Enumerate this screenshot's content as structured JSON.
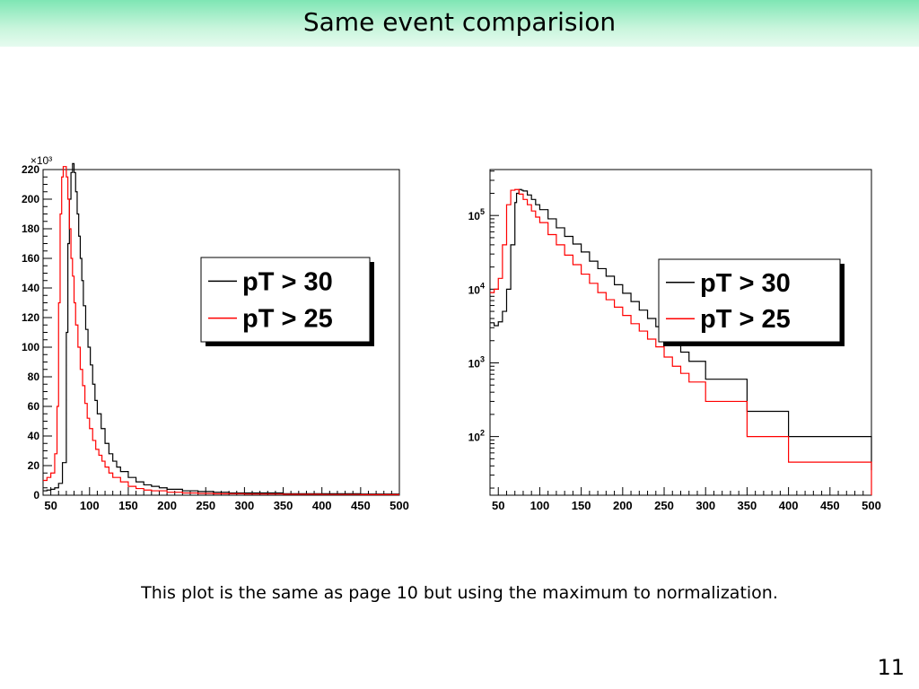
{
  "slide": {
    "title": "Same event comparision",
    "caption": "This plot is the same as page 10 but using the maximum to normalization.",
    "page_number": "11"
  },
  "chart_data": [
    {
      "type": "line",
      "title": "",
      "xlabel": "",
      "ylabel": "",
      "y_multiplier": "×10³",
      "xlim": [
        40,
        500
      ],
      "ylim": [
        0,
        220
      ],
      "yscale": "linear",
      "xticks": [
        50,
        100,
        150,
        200,
        250,
        300,
        350,
        400,
        450,
        500
      ],
      "yticks": [
        0,
        20,
        40,
        60,
        80,
        100,
        120,
        140,
        160,
        180,
        200,
        220
      ],
      "legend_position": "top-right",
      "grid": false,
      "series": [
        {
          "name": "pT > 30",
          "color": "#000000",
          "x": [
            40,
            45,
            50,
            55,
            60,
            65,
            70,
            72,
            74,
            76,
            78,
            80,
            82,
            84,
            86,
            88,
            90,
            92,
            95,
            98,
            101,
            104,
            107,
            110,
            115,
            120,
            125,
            130,
            135,
            140,
            150,
            160,
            170,
            180,
            190,
            200,
            220,
            240,
            260,
            280,
            300,
            350,
            400,
            450,
            500
          ],
          "y": [
            3,
            3.5,
            4,
            5,
            8,
            22,
            110,
            170,
            200,
            218,
            224,
            218,
            205,
            190,
            175,
            160,
            145,
            128,
            112,
            100,
            88,
            75,
            64,
            55,
            45,
            35,
            28,
            23,
            19,
            16,
            12,
            9,
            7,
            6,
            5,
            4,
            3,
            2.5,
            2,
            1.5,
            1.5,
            1,
            1,
            0.8,
            0.8
          ]
        },
        {
          "name": "pT > 25",
          "color": "#ff0000",
          "x": [
            40,
            45,
            50,
            55,
            58,
            60,
            62,
            64,
            66,
            68,
            70,
            72,
            74,
            76,
            78,
            80,
            82,
            85,
            88,
            91,
            94,
            97,
            100,
            104,
            108,
            112,
            116,
            120,
            125,
            130,
            140,
            150,
            160,
            170,
            180,
            200,
            220,
            240,
            260,
            280,
            300,
            350,
            400,
            450,
            500
          ],
          "y": [
            10,
            12,
            15,
            28,
            60,
            130,
            190,
            215,
            222,
            222,
            215,
            200,
            180,
            160,
            148,
            130,
            115,
            100,
            85,
            74,
            62,
            52,
            45,
            37,
            31,
            27,
            23,
            19,
            15,
            12,
            9,
            6,
            4.5,
            3.5,
            3,
            2,
            1.5,
            1.2,
            1,
            1,
            0.8,
            0.6,
            0.5,
            0.4,
            0.4
          ]
        }
      ]
    },
    {
      "type": "line",
      "title": "",
      "xlabel": "",
      "ylabel": "",
      "xlim": [
        40,
        500
      ],
      "ylim": [
        16,
        420000
      ],
      "yscale": "log",
      "xticks": [
        50,
        100,
        150,
        200,
        250,
        300,
        350,
        400,
        450,
        500
      ],
      "yticks_major": [
        100,
        1000,
        10000,
        100000
      ],
      "legend_position": "top-right",
      "grid": false,
      "series": [
        {
          "name": "pT > 30",
          "color": "#000000",
          "x": [
            40,
            45,
            50,
            55,
            60,
            65,
            70,
            72,
            75,
            78,
            80,
            85,
            90,
            95,
            100,
            110,
            120,
            130,
            140,
            150,
            160,
            170,
            180,
            190,
            200,
            210,
            220,
            230,
            240,
            250,
            260,
            270,
            280,
            300,
            350,
            400,
            500
          ],
          "y": [
            3500,
            3200,
            3600,
            5000,
            10000,
            40000,
            150000,
            200000,
            225000,
            220000,
            215000,
            190000,
            165000,
            140000,
            120000,
            90000,
            68000,
            52000,
            41000,
            32000,
            24000,
            19000,
            15000,
            11500,
            8800,
            6800,
            5200,
            4000,
            3100,
            2300,
            1800,
            1400,
            1050,
            600,
            220,
            100,
            35
          ]
        },
        {
          "name": "pT > 25",
          "color": "#ff0000",
          "x": [
            40,
            45,
            50,
            55,
            60,
            65,
            70,
            75,
            80,
            85,
            90,
            95,
            100,
            110,
            120,
            130,
            140,
            150,
            160,
            170,
            180,
            190,
            200,
            210,
            220,
            230,
            240,
            250,
            260,
            270,
            280,
            300,
            350,
            400,
            500
          ],
          "y": [
            9000,
            10000,
            14000,
            40000,
            140000,
            220000,
            225000,
            195000,
            165000,
            140000,
            115000,
            95000,
            80000,
            55000,
            40000,
            29000,
            21500,
            16000,
            12000,
            9000,
            7200,
            5700,
            4400,
            3400,
            2700,
            2100,
            1650,
            1200,
            900,
            720,
            550,
            300,
            100,
            45,
            16
          ]
        }
      ]
    }
  ]
}
